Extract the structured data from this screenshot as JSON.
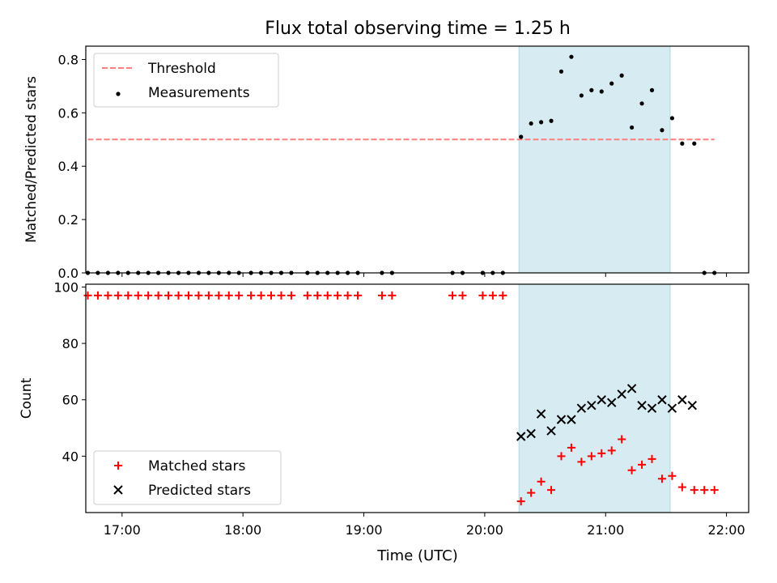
{
  "title": "Flux total observing time = 1.25 h",
  "xlabel": "Time (UTC)",
  "xticks": [
    "17:00",
    "18:00",
    "19:00",
    "20:00",
    "21:00",
    "22:00"
  ],
  "colors": {
    "threshold": "#ff7f7f",
    "measurements": "#000000",
    "matched": "#ff0000",
    "predicted": "#000000",
    "shade": "#add8e6"
  },
  "chart_data": [
    {
      "type": "scatter",
      "ylabel": "Matched/Predicted stars",
      "yticks": [
        "0.0",
        "0.2",
        "0.4",
        "0.6",
        "0.8"
      ],
      "ylim": [
        0,
        0.85
      ],
      "xlim": [
        "16:42",
        "22:11"
      ],
      "shaded_interval": [
        "20:17",
        "21:32"
      ],
      "legend": {
        "position": "top-left",
        "entries": [
          "Threshold",
          "Measurements"
        ]
      },
      "threshold": {
        "name": "Threshold",
        "x_range": [
          "16:43",
          "21:54"
        ],
        "y": 0.5
      },
      "series": [
        {
          "name": "Measurements",
          "x": [
            "16:43",
            "16:48",
            "16:53",
            "16:58",
            "17:03",
            "17:08",
            "17:13",
            "17:18",
            "17:23",
            "17:28",
            "17:33",
            "17:38",
            "17:43",
            "17:48",
            "17:53",
            "17:58",
            "18:04",
            "18:09",
            "18:14",
            "18:19",
            "18:24",
            "18:32",
            "18:37",
            "18:42",
            "18:47",
            "18:52",
            "18:57",
            "19:09",
            "19:14",
            "19:44",
            "19:49",
            "19:59",
            "20:04",
            "20:09",
            "20:18",
            "20:23",
            "20:28",
            "20:33",
            "20:38",
            "20:43",
            "20:48",
            "20:53",
            "20:58",
            "21:03",
            "21:08",
            "21:13",
            "21:18",
            "21:23",
            "21:28",
            "21:33",
            "21:38",
            "21:44",
            "21:49",
            "21:54"
          ],
          "y": [
            0,
            0,
            0,
            0,
            0,
            0,
            0,
            0,
            0,
            0,
            0,
            0,
            0,
            0,
            0,
            0,
            0,
            0,
            0,
            0,
            0,
            0,
            0,
            0,
            0,
            0,
            0,
            0,
            0,
            0,
            0,
            0,
            0,
            0,
            0.51,
            0.56,
            0.565,
            0.57,
            0.755,
            0.81,
            0.665,
            0.685,
            0.68,
            0.71,
            0.74,
            0.545,
            0.635,
            0.685,
            0.535,
            0.58,
            0.485,
            0.485,
            0,
            0
          ]
        }
      ]
    },
    {
      "type": "scatter",
      "ylabel": "Count",
      "yticks": [
        "40",
        "60",
        "80",
        "100"
      ],
      "ylim": [
        20,
        101
      ],
      "xlim": [
        "16:42",
        "22:11"
      ],
      "shaded_interval": [
        "20:17",
        "21:32"
      ],
      "legend": {
        "position": "bottom-left",
        "entries": [
          "Matched stars",
          "Predicted stars"
        ]
      },
      "series": [
        {
          "name": "Matched stars",
          "x": [
            "16:43",
            "16:48",
            "16:53",
            "16:58",
            "17:03",
            "17:08",
            "17:13",
            "17:18",
            "17:23",
            "17:28",
            "17:33",
            "17:38",
            "17:43",
            "17:48",
            "17:53",
            "17:58",
            "18:04",
            "18:09",
            "18:14",
            "18:19",
            "18:24",
            "18:32",
            "18:37",
            "18:42",
            "18:47",
            "18:52",
            "18:57",
            "19:09",
            "19:14",
            "19:44",
            "19:49",
            "19:59",
            "20:04",
            "20:09",
            "20:18",
            "20:23",
            "20:28",
            "20:33",
            "20:38",
            "20:43",
            "20:48",
            "20:53",
            "20:58",
            "21:03",
            "21:08",
            "21:13",
            "21:18",
            "21:23",
            "21:28",
            "21:33",
            "21:38",
            "21:44",
            "21:49",
            "21:54"
          ],
          "y": [
            97,
            97,
            97,
            97,
            97,
            97,
            97,
            97,
            97,
            97,
            97,
            97,
            97,
            97,
            97,
            97,
            97,
            97,
            97,
            97,
            97,
            97,
            97,
            97,
            97,
            97,
            97,
            97,
            97,
            97,
            97,
            97,
            97,
            97,
            24,
            27,
            31,
            28,
            40,
            43,
            38,
            40,
            41,
            42,
            46,
            35,
            37,
            39,
            32,
            33,
            29,
            28,
            28,
            28
          ]
        },
        {
          "name": "Predicted stars",
          "x": [
            "20:18",
            "20:23",
            "20:28",
            "20:33",
            "20:38",
            "20:43",
            "20:48",
            "20:53",
            "20:58",
            "21:03",
            "21:08",
            "21:13",
            "21:18",
            "21:23",
            "21:28",
            "21:33",
            "21:38",
            "21:43"
          ],
          "y": [
            47,
            48,
            55,
            49,
            53,
            53,
            57,
            58,
            60,
            59,
            62,
            64,
            58,
            57,
            60,
            57,
            60,
            58
          ]
        }
      ]
    }
  ]
}
